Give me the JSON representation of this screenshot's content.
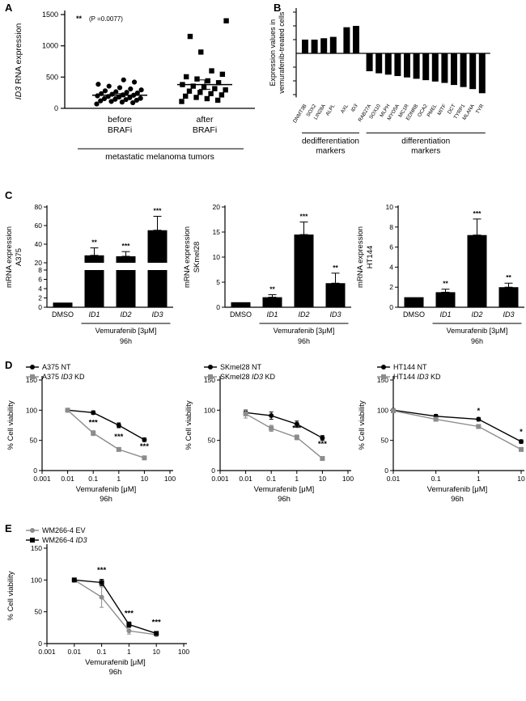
{
  "panels": {
    "A": {
      "label": "A"
    },
    "B": {
      "label": "B"
    },
    "C": {
      "label": "C"
    },
    "D": {
      "label": "D"
    },
    "E": {
      "label": "E"
    }
  },
  "colors": {
    "black": "#000000",
    "gray": "#8c8c8c"
  },
  "chart_data": [
    {
      "panel": "A",
      "type": "scatter",
      "ylabel": "ID3 RNA expression",
      "ylim": [
        0,
        1500
      ],
      "yticks": [
        0,
        500,
        1000,
        1500
      ],
      "annotation_sig": "**",
      "annotation_p": "(P =0.0077)",
      "groups": [
        {
          "label_lines": [
            "before",
            "BRAFi"
          ],
          "marker": "circle",
          "mean": 210,
          "sem": 25,
          "values": [
            70,
            90,
            100,
            110,
            120,
            130,
            140,
            145,
            155,
            160,
            170,
            180,
            190,
            200,
            210,
            215,
            225,
            235,
            245,
            255,
            265,
            280,
            295,
            310,
            330,
            355,
            385,
            420,
            455
          ]
        },
        {
          "label_lines": [
            "after",
            "BRAFi"
          ],
          "marker": "square",
          "mean": 380,
          "sem": 75,
          "values": [
            110,
            130,
            155,
            175,
            195,
            215,
            235,
            255,
            275,
            295,
            315,
            335,
            355,
            380,
            410,
            440,
            470,
            505,
            545,
            600,
            900,
            1150,
            1400
          ]
        }
      ],
      "group_axis_label": "metastatic melanoma tumors"
    },
    {
      "panel": "B",
      "type": "waterfall",
      "ylabel_lines": [
        "Expression values in",
        "vemurafenib-treated cells"
      ],
      "categories": [
        "DNMT3B",
        "SOX2",
        "LIN28A",
        "ALPL",
        "AXL",
        "ID3",
        "RAB27A",
        "SOX10",
        "MLPH",
        "MYO5A",
        "MC1R",
        "EDNRB",
        "OCA2",
        "PMEL",
        "MITF",
        "DCT",
        "TYRP1",
        "MLANA",
        "TYR"
      ],
      "values": [
        1.0,
        1.0,
        1.1,
        1.2,
        1.9,
        2.0,
        -1.3,
        -1.45,
        -1.55,
        -1.65,
        -1.75,
        -1.85,
        -1.95,
        -2.05,
        -2.15,
        -2.3,
        -2.45,
        -2.6,
        -2.9
      ],
      "gaps_after": [
        3,
        5
      ],
      "group_brackets": [
        {
          "from": 0,
          "to": 5,
          "label_lines": [
            "dedifferentiation",
            "markers"
          ]
        },
        {
          "from": 6,
          "to": 18,
          "label_lines": [
            "differentiation",
            "markers"
          ]
        }
      ]
    },
    {
      "panel": "C1",
      "type": "bar",
      "ylabel_lines": [
        "mRNA expression",
        "A375"
      ],
      "categories": [
        "DMSO",
        "ID1",
        "ID2",
        "ID3"
      ],
      "values": [
        1,
        28,
        27,
        55
      ],
      "errors": [
        0,
        8,
        5,
        15
      ],
      "sig": [
        "",
        "**",
        "***",
        "***"
      ],
      "broken_axis": {
        "lower_max": 8,
        "lower_ticks": [
          0,
          2,
          4,
          6,
          8
        ],
        "upper_min": 20,
        "upper_max": 80,
        "upper_ticks": [
          20,
          40,
          60,
          80
        ]
      },
      "treatment_label": "Vemurafenib [3μM]",
      "treatment_span": [
        1,
        3
      ],
      "time_label": "96h"
    },
    {
      "panel": "C2",
      "type": "bar",
      "ylabel_lines": [
        "mRNA expression",
        "SKmel28"
      ],
      "categories": [
        "DMSO",
        "ID1",
        "ID2",
        "ID3"
      ],
      "values": [
        1,
        2,
        14.5,
        4.8
      ],
      "errors": [
        0,
        0.5,
        2.5,
        2
      ],
      "sig": [
        "",
        "**",
        "***",
        "**"
      ],
      "ylim": [
        0,
        20
      ],
      "yticks": [
        0,
        5,
        10,
        15,
        20
      ],
      "treatment_label": "Vemurafenib [3μM]",
      "treatment_span": [
        1,
        3
      ],
      "time_label": "96h"
    },
    {
      "panel": "C3",
      "type": "bar",
      "ylabel_lines": [
        "mRNA expression",
        "HT144"
      ],
      "categories": [
        "DMSO",
        "ID1",
        "ID2",
        "ID3"
      ],
      "values": [
        1,
        1.5,
        7.2,
        2
      ],
      "errors": [
        0,
        0.3,
        1.6,
        0.4
      ],
      "sig": [
        "",
        "**",
        "***",
        "**"
      ],
      "ylim": [
        0,
        10
      ],
      "yticks": [
        0,
        2,
        4,
        6,
        8,
        10
      ],
      "treatment_label": "Vemurafenib [3μM]",
      "treatment_span": [
        1,
        3
      ],
      "time_label": "96h"
    },
    {
      "panel": "D1",
      "type": "line",
      "ylabel": "% Cell viability",
      "xlabel": "Vemurafenib [μM]",
      "time_label": "96h",
      "ylim": [
        0,
        150
      ],
      "yticks": [
        0,
        50,
        100,
        150
      ],
      "x": [
        0.01,
        0.1,
        1,
        10
      ],
      "xtick_values": [
        0.001,
        0.01,
        0.1,
        1,
        10,
        100
      ],
      "xtick_labels": [
        "0.001",
        "0.01",
        "0.1",
        "1",
        "10",
        "100"
      ],
      "series": [
        {
          "name": "A375 NT",
          "marker": "circle",
          "color": "#000000",
          "values": [
            100,
            96,
            75,
            51
          ],
          "errors": [
            2,
            3,
            4,
            3
          ]
        },
        {
          "name": "A375 ID3 KD",
          "marker": "square",
          "color": "#8c8c8c",
          "values": [
            100,
            62,
            35,
            21
          ],
          "errors": [
            2,
            4,
            3,
            2
          ]
        }
      ],
      "sig": [
        {
          "x": 0.1,
          "y": 76,
          "label": "***"
        },
        {
          "x": 1,
          "y": 52,
          "label": "***"
        },
        {
          "x": 10,
          "y": 36,
          "label": "***"
        }
      ]
    },
    {
      "panel": "D2",
      "type": "line",
      "ylabel": "% Cell viability",
      "xlabel": "Vemurafenib [μM]",
      "time_label": "96h",
      "ylim": [
        0,
        150
      ],
      "yticks": [
        0,
        50,
        100,
        150
      ],
      "x": [
        0.01,
        0.1,
        1,
        10
      ],
      "xtick_values": [
        0.001,
        0.01,
        0.1,
        1,
        10,
        100
      ],
      "xtick_labels": [
        "0.001",
        "0.01",
        "0.1",
        "1",
        "10",
        "100"
      ],
      "series": [
        {
          "name": "SKmel28 NT",
          "marker": "circle",
          "color": "#000000",
          "values": [
            96,
            91,
            77,
            54
          ],
          "errors": [
            3,
            6,
            5,
            4
          ]
        },
        {
          "name": "SKmel28 ID3 KD",
          "marker": "square",
          "color": "#8c8c8c",
          "values": [
            94,
            70,
            55,
            20
          ],
          "errors": [
            7,
            5,
            4,
            2
          ]
        }
      ],
      "sig": [
        {
          "x": 1,
          "y": 66,
          "label": "***"
        },
        {
          "x": 10,
          "y": 40,
          "label": "***"
        }
      ]
    },
    {
      "panel": "D3",
      "type": "line",
      "ylabel": "% Cell viability",
      "xlabel": "Vemurafenib [μM]",
      "time_label": "96h",
      "ylim": [
        0,
        150
      ],
      "yticks": [
        0,
        50,
        100,
        150
      ],
      "x": [
        0.01,
        0.1,
        1,
        10
      ],
      "xtick_values": [
        0.01,
        0.1,
        1,
        10
      ],
      "xtick_labels": [
        "0.01",
        "0.1",
        "1",
        "10"
      ],
      "series": [
        {
          "name": "HT144 NT",
          "marker": "circle",
          "color": "#000000",
          "values": [
            100,
            90,
            85,
            48
          ],
          "errors": [
            2,
            3,
            3,
            3
          ]
        },
        {
          "name": "HT144 ID3 KD",
          "marker": "square",
          "color": "#8c8c8c",
          "values": [
            99,
            85,
            73,
            35
          ],
          "errors": [
            2,
            3,
            3,
            3
          ]
        }
      ],
      "sig": [
        {
          "x": 1,
          "y": 95,
          "label": "*"
        },
        {
          "x": 10,
          "y": 60,
          "label": "*"
        }
      ]
    },
    {
      "panel": "E",
      "type": "line",
      "ylabel": "% Cell viability",
      "xlabel": "Vemurafenib [μM]",
      "time_label": "96h",
      "ylim": [
        0,
        150
      ],
      "yticks": [
        0,
        50,
        100,
        150
      ],
      "x": [
        0.01,
        0.1,
        1,
        10
      ],
      "xtick_values": [
        0.001,
        0.01,
        0.1,
        1,
        10,
        100
      ],
      "xtick_labels": [
        "0.001",
        "0.01",
        "0.1",
        "1",
        "10",
        "100"
      ],
      "series": [
        {
          "name": "WM266-4 EV",
          "marker": "circle",
          "color": "#8c8c8c",
          "values": [
            100,
            73,
            20,
            14
          ],
          "errors": [
            3,
            16,
            5,
            2
          ]
        },
        {
          "name": "WM266-4 ID3",
          "marker": "square",
          "color": "#000000",
          "values": [
            100,
            96,
            30,
            16
          ],
          "errors": [
            3,
            5,
            4,
            2
          ]
        }
      ],
      "sig": [
        {
          "x": 0.1,
          "y": 112,
          "label": "***"
        },
        {
          "x": 1,
          "y": 44,
          "label": "***"
        },
        {
          "x": 10,
          "y": 30,
          "label": "***"
        }
      ]
    }
  ]
}
